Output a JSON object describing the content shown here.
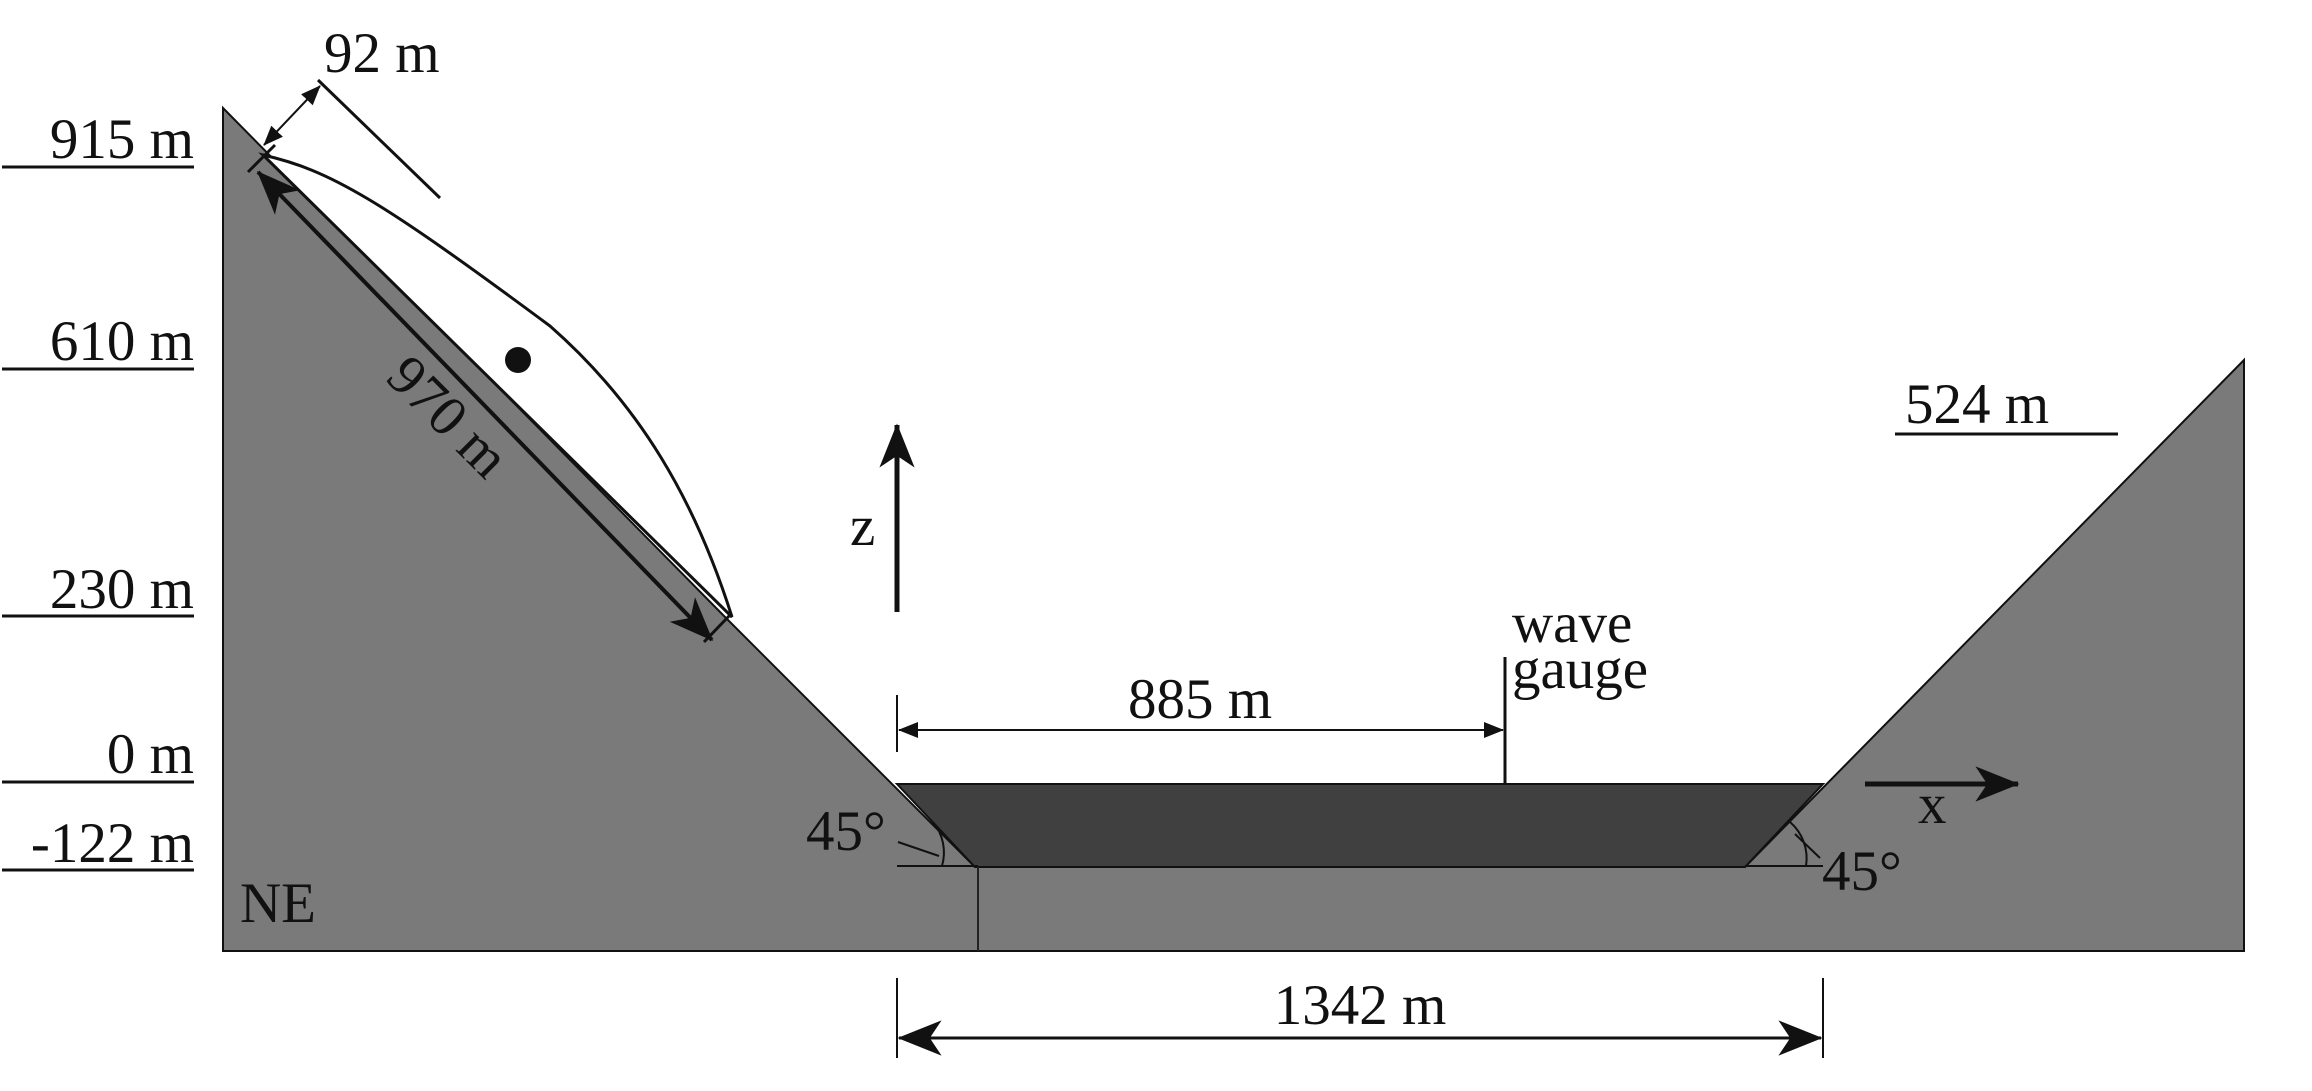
{
  "elevation_labels": {
    "top": "915 m",
    "upper": "610 m",
    "middle": "230 m",
    "sea_level": "0 m",
    "bottom": "-122 m",
    "right_slope_top": "524 m"
  },
  "dimensions": {
    "slide_thickness": "92 m",
    "slide_length": "970 m",
    "gauge_distance": "885 m",
    "basin_width": "1342 m"
  },
  "angles": {
    "left_toe": "45°",
    "right_toe": "45°"
  },
  "text": {
    "side_label": "NE",
    "gauge_line1": "wave",
    "gauge_line2": "gauge",
    "z_axis": "z",
    "x_axis": "x"
  },
  "colors": {
    "terrain": "#7a7a7a",
    "water": "#404040",
    "slide": "#ffffff",
    "ink": "#111111"
  }
}
